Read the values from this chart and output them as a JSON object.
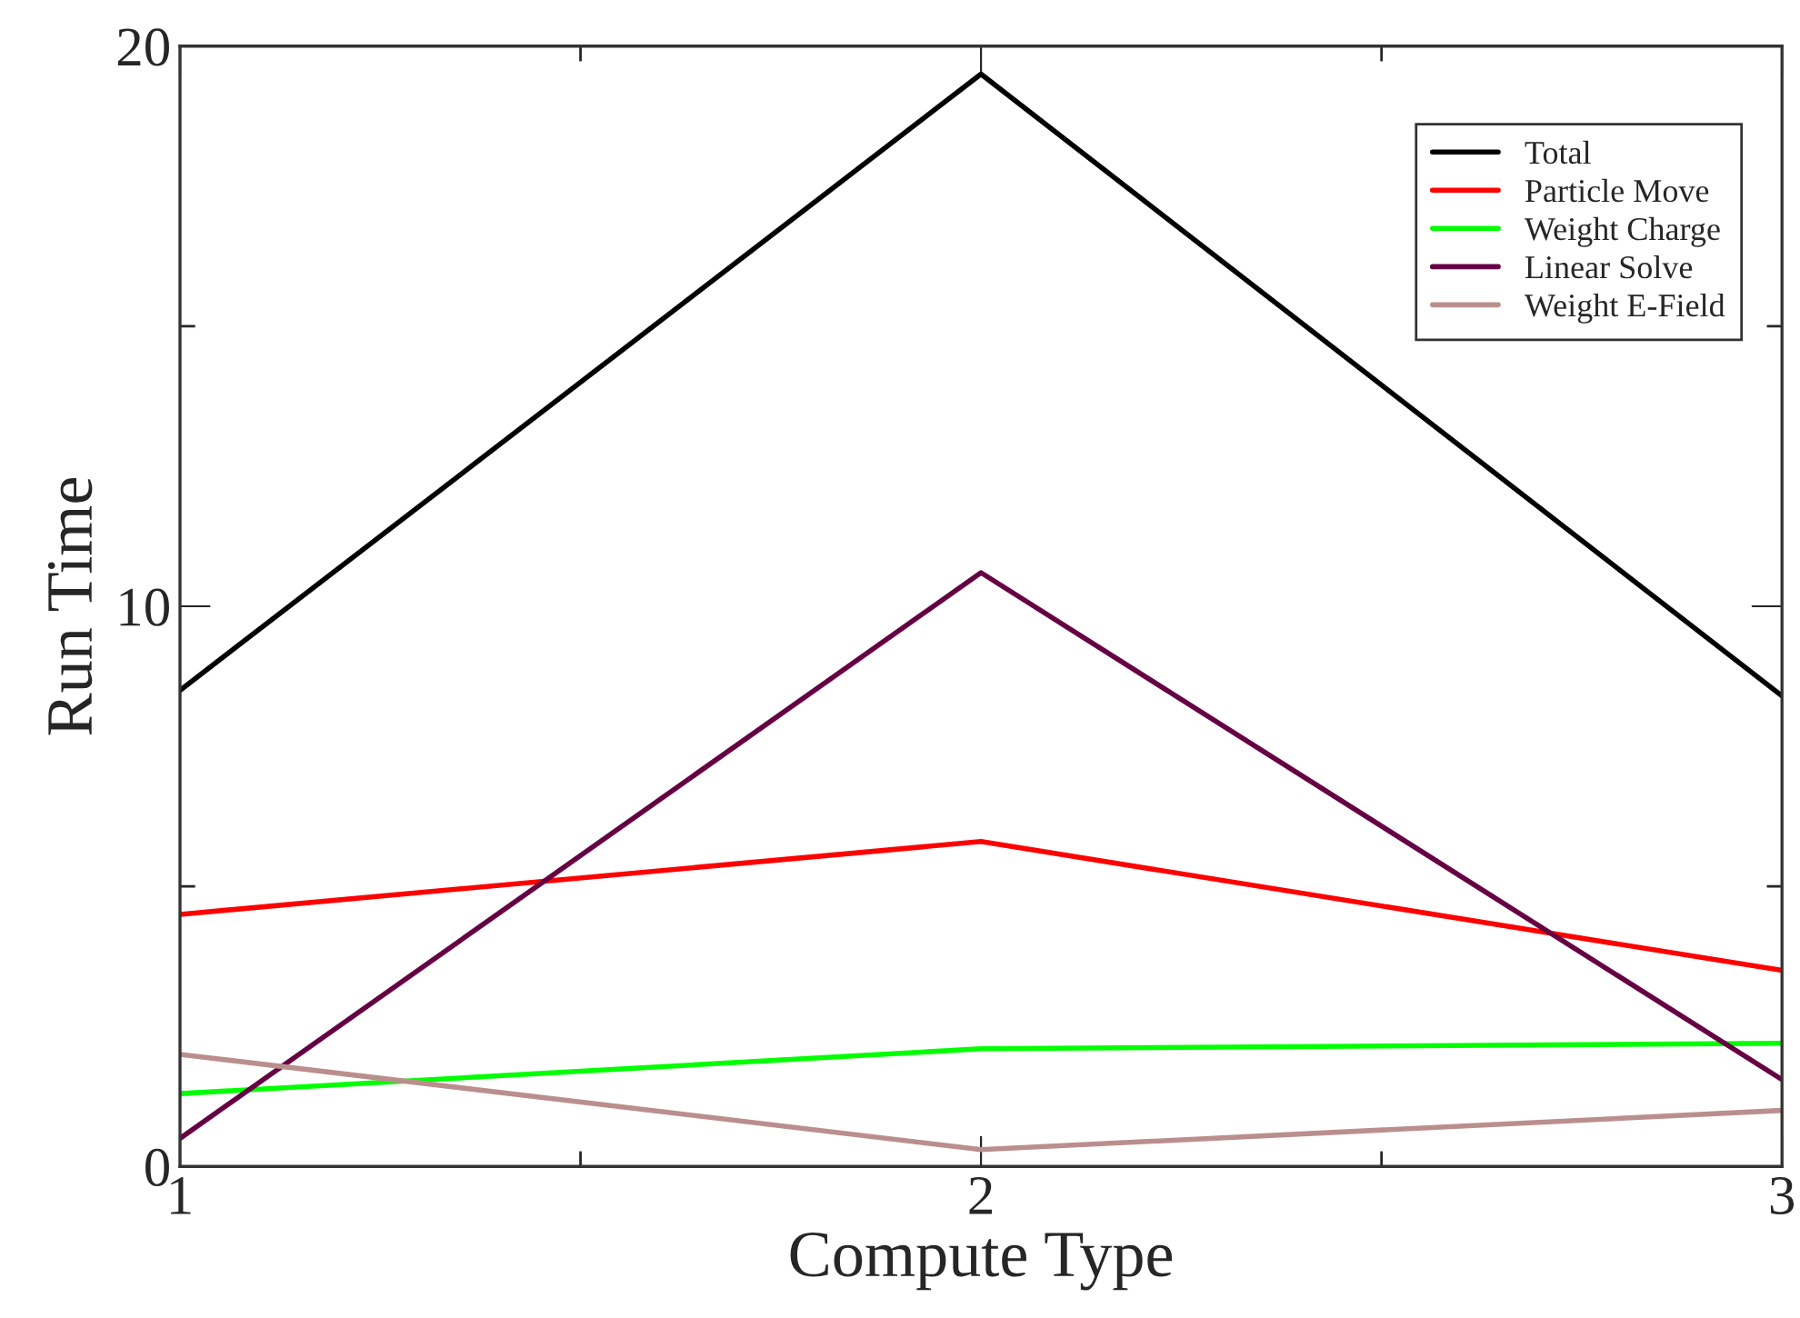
{
  "chart_data": {
    "type": "line",
    "xlabel": "Compute Type",
    "ylabel": "Run Time",
    "x": [
      1,
      2,
      3
    ],
    "series": [
      {
        "name": "Total",
        "color": "#000000",
        "values": [
          8.5,
          19.5,
          8.4
        ]
      },
      {
        "name": "Particle Move",
        "color": "#ff0000",
        "values": [
          4.5,
          5.8,
          3.5
        ]
      },
      {
        "name": "Weight Charge",
        "color": "#00ff00",
        "values": [
          1.3,
          2.1,
          2.2
        ]
      },
      {
        "name": "Linear Solve",
        "color": "#660044",
        "values": [
          0.5,
          10.6,
          1.55
        ]
      },
      {
        "name": "Weight E-Field",
        "color": "#bb8e8e",
        "values": [
          2.0,
          0.3,
          1.0
        ]
      }
    ],
    "xlim": [
      1,
      3
    ],
    "ylim": [
      0,
      20
    ],
    "xticks": [
      1,
      {
        "value": 1.5,
        "label": null
      },
      2,
      {
        "value": 2.5,
        "label": null
      },
      3
    ],
    "yticks": [
      0,
      {
        "value": 5,
        "label": null
      },
      10,
      {
        "value": 15,
        "label": null
      },
      20
    ],
    "legend": "top right",
    "grid": false,
    "marker": "none",
    "line_style": "solid"
  }
}
